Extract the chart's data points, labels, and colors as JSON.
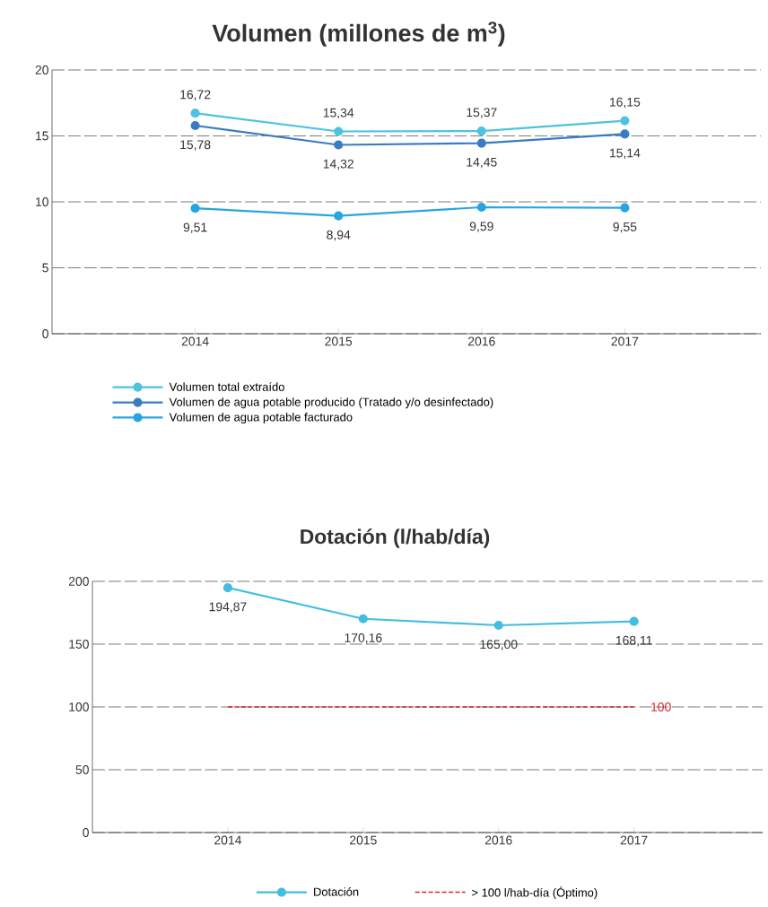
{
  "chart_data": [
    {
      "type": "line",
      "title": "Volumen (millones de m$^{3}$)",
      "categories": [
        "2014",
        "2015",
        "2016",
        "2017"
      ],
      "ylim": [
        0,
        20
      ],
      "yticks": [
        0,
        5,
        10,
        15,
        20
      ],
      "grid": "y",
      "legend": "bottom",
      "marker": "circle",
      "line_style": "solid",
      "series": [
        {
          "name": "Volumen total extraído",
          "color": "#4dc3e0",
          "values": [
            16.72,
            15.34,
            15.37,
            16.15
          ],
          "value_labels": [
            "16,72",
            "15,34",
            "15,37",
            "16,15"
          ]
        },
        {
          "name": "Volumen de agua potable producido (Tratado y/o desinfectado)",
          "color": "#3a7cc4",
          "values": [
            15.78,
            14.32,
            14.45,
            15.14
          ],
          "value_labels": [
            "15,78",
            "14,32",
            "14,45",
            "15,14"
          ]
        },
        {
          "name": "Volumen de agua potable facturado",
          "color": "#26a6e0",
          "values": [
            9.51,
            8.94,
            9.59,
            9.55
          ],
          "value_labels": [
            "9,51",
            "8,94",
            "9,59",
            "9,55"
          ]
        }
      ]
    },
    {
      "type": "line",
      "title": "Dotación (l/hab/día)",
      "categories": [
        "2014",
        "2015",
        "2016",
        "2017"
      ],
      "ylim": [
        0,
        200
      ],
      "yticks": [
        0,
        50,
        100,
        150,
        200
      ],
      "grid": "y",
      "legend": "bottom",
      "marker": "circle",
      "line_style": "solid",
      "series": [
        {
          "name": "Dotación",
          "color": "#45bde0",
          "values": [
            194.87,
            170.16,
            165.0,
            168.11
          ],
          "value_labels": [
            "194,87",
            "170,16",
            "165,00",
            "168,11"
          ]
        },
        {
          "name": "> 100 l/hab-día  (Óptimo)",
          "color": "#d9262b",
          "values": [
            100,
            100,
            100,
            100
          ],
          "value_labels": [
            null,
            null,
            null,
            "100"
          ],
          "marker": "none",
          "line_style": "dashed"
        }
      ]
    }
  ]
}
